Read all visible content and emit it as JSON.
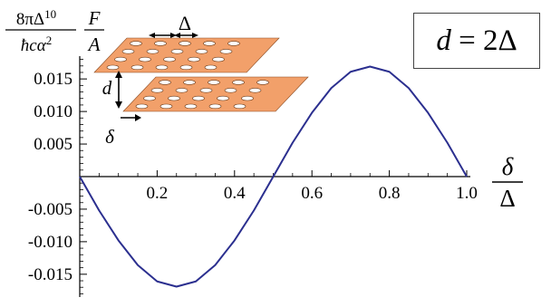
{
  "chart_data": {
    "type": "line",
    "series": [
      {
        "x": [
          0.0,
          0.05,
          0.1,
          0.15,
          0.2,
          0.25,
          0.3,
          0.35,
          0.4,
          0.45,
          0.5,
          0.55,
          0.6,
          0.65,
          0.7,
          0.75,
          0.8,
          0.85,
          0.9,
          0.95,
          1.0
        ],
        "y": [
          0.0,
          -0.0052,
          -0.0098,
          -0.0136,
          -0.0161,
          -0.0169,
          -0.0161,
          -0.0136,
          -0.0098,
          -0.0052,
          0.0,
          0.0052,
          0.0098,
          0.0136,
          0.0161,
          0.0169,
          0.0161,
          0.0136,
          0.0098,
          0.0052,
          0.0
        ],
        "color": "#2b2f8f"
      }
    ],
    "xlim": [
      0.0,
      1.0
    ],
    "ylim": [
      -0.0185,
      0.0185
    ],
    "xticks": [
      0.2,
      0.4,
      0.6,
      0.8,
      1.0
    ],
    "xtick_labels": [
      "0.2",
      "0.4",
      "0.6",
      "0.8",
      "1.0"
    ],
    "yticks": [
      0.015,
      0.01,
      0.005,
      -0.005,
      -0.01,
      -0.015
    ],
    "ytick_labels": [
      "0.015",
      "0.010",
      "0.005",
      "-0.005",
      "-0.010",
      "-0.015"
    ],
    "ylabel": {
      "prefactor_numerator": "8πΔ",
      "prefactor_exponent": "10",
      "prefactor_denominator": "ħcα",
      "denominator_exponent": "2",
      "fraction_numerator": "F",
      "fraction_denominator": "A"
    },
    "xlabel": {
      "numerator": "δ",
      "denominator": "Δ"
    },
    "annotation": {
      "lhs": "d",
      "equals": " = ",
      "rhs": "2Δ"
    },
    "inset": {
      "spacing_label": "Δ",
      "separation_label": "d",
      "shift_label": "δ",
      "plate_color": "#f2a06a"
    }
  }
}
